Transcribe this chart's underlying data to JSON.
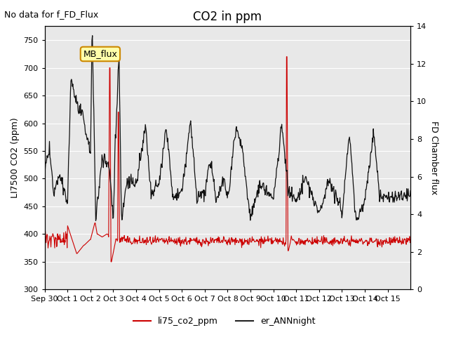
{
  "title": "CO2 in ppm",
  "top_left_text": "No data for f_FD_Flux",
  "ylabel_left": "LI7500 CO2 (ppm)",
  "ylabel_right": "FD Chamber flux",
  "ylim_left": [
    300,
    775
  ],
  "ylim_right": [
    0,
    14
  ],
  "yticks_left": [
    300,
    350,
    400,
    450,
    500,
    550,
    600,
    650,
    700,
    750
  ],
  "yticks_right": [
    0,
    2,
    4,
    6,
    8,
    10,
    12,
    14
  ],
  "xtick_labels": [
    "Sep 30",
    "Oct 1",
    "Oct 2",
    "Oct 3",
    "Oct 4",
    "Oct 5",
    "Oct 6",
    "Oct 7",
    "Oct 8",
    "Oct 9",
    "Oct 10",
    "Oct 11",
    "Oct 12",
    "Oct 13",
    "Oct 14",
    "Oct 15"
  ],
  "legend_labels": [
    "li75_co2_ppm",
    "er_ANNnight"
  ],
  "legend_colors": [
    "#cc0000",
    "#222222"
  ],
  "mb_flux_box_color": "#ffffaa",
  "mb_flux_box_edge": "#cc8800",
  "background_shade_color": "#e8e8e8",
  "line_red_color": "#cc0000",
  "line_black_color": "#111111",
  "grid_color": "#ffffff",
  "title_fontsize": 12,
  "label_fontsize": 9,
  "tick_fontsize": 8
}
